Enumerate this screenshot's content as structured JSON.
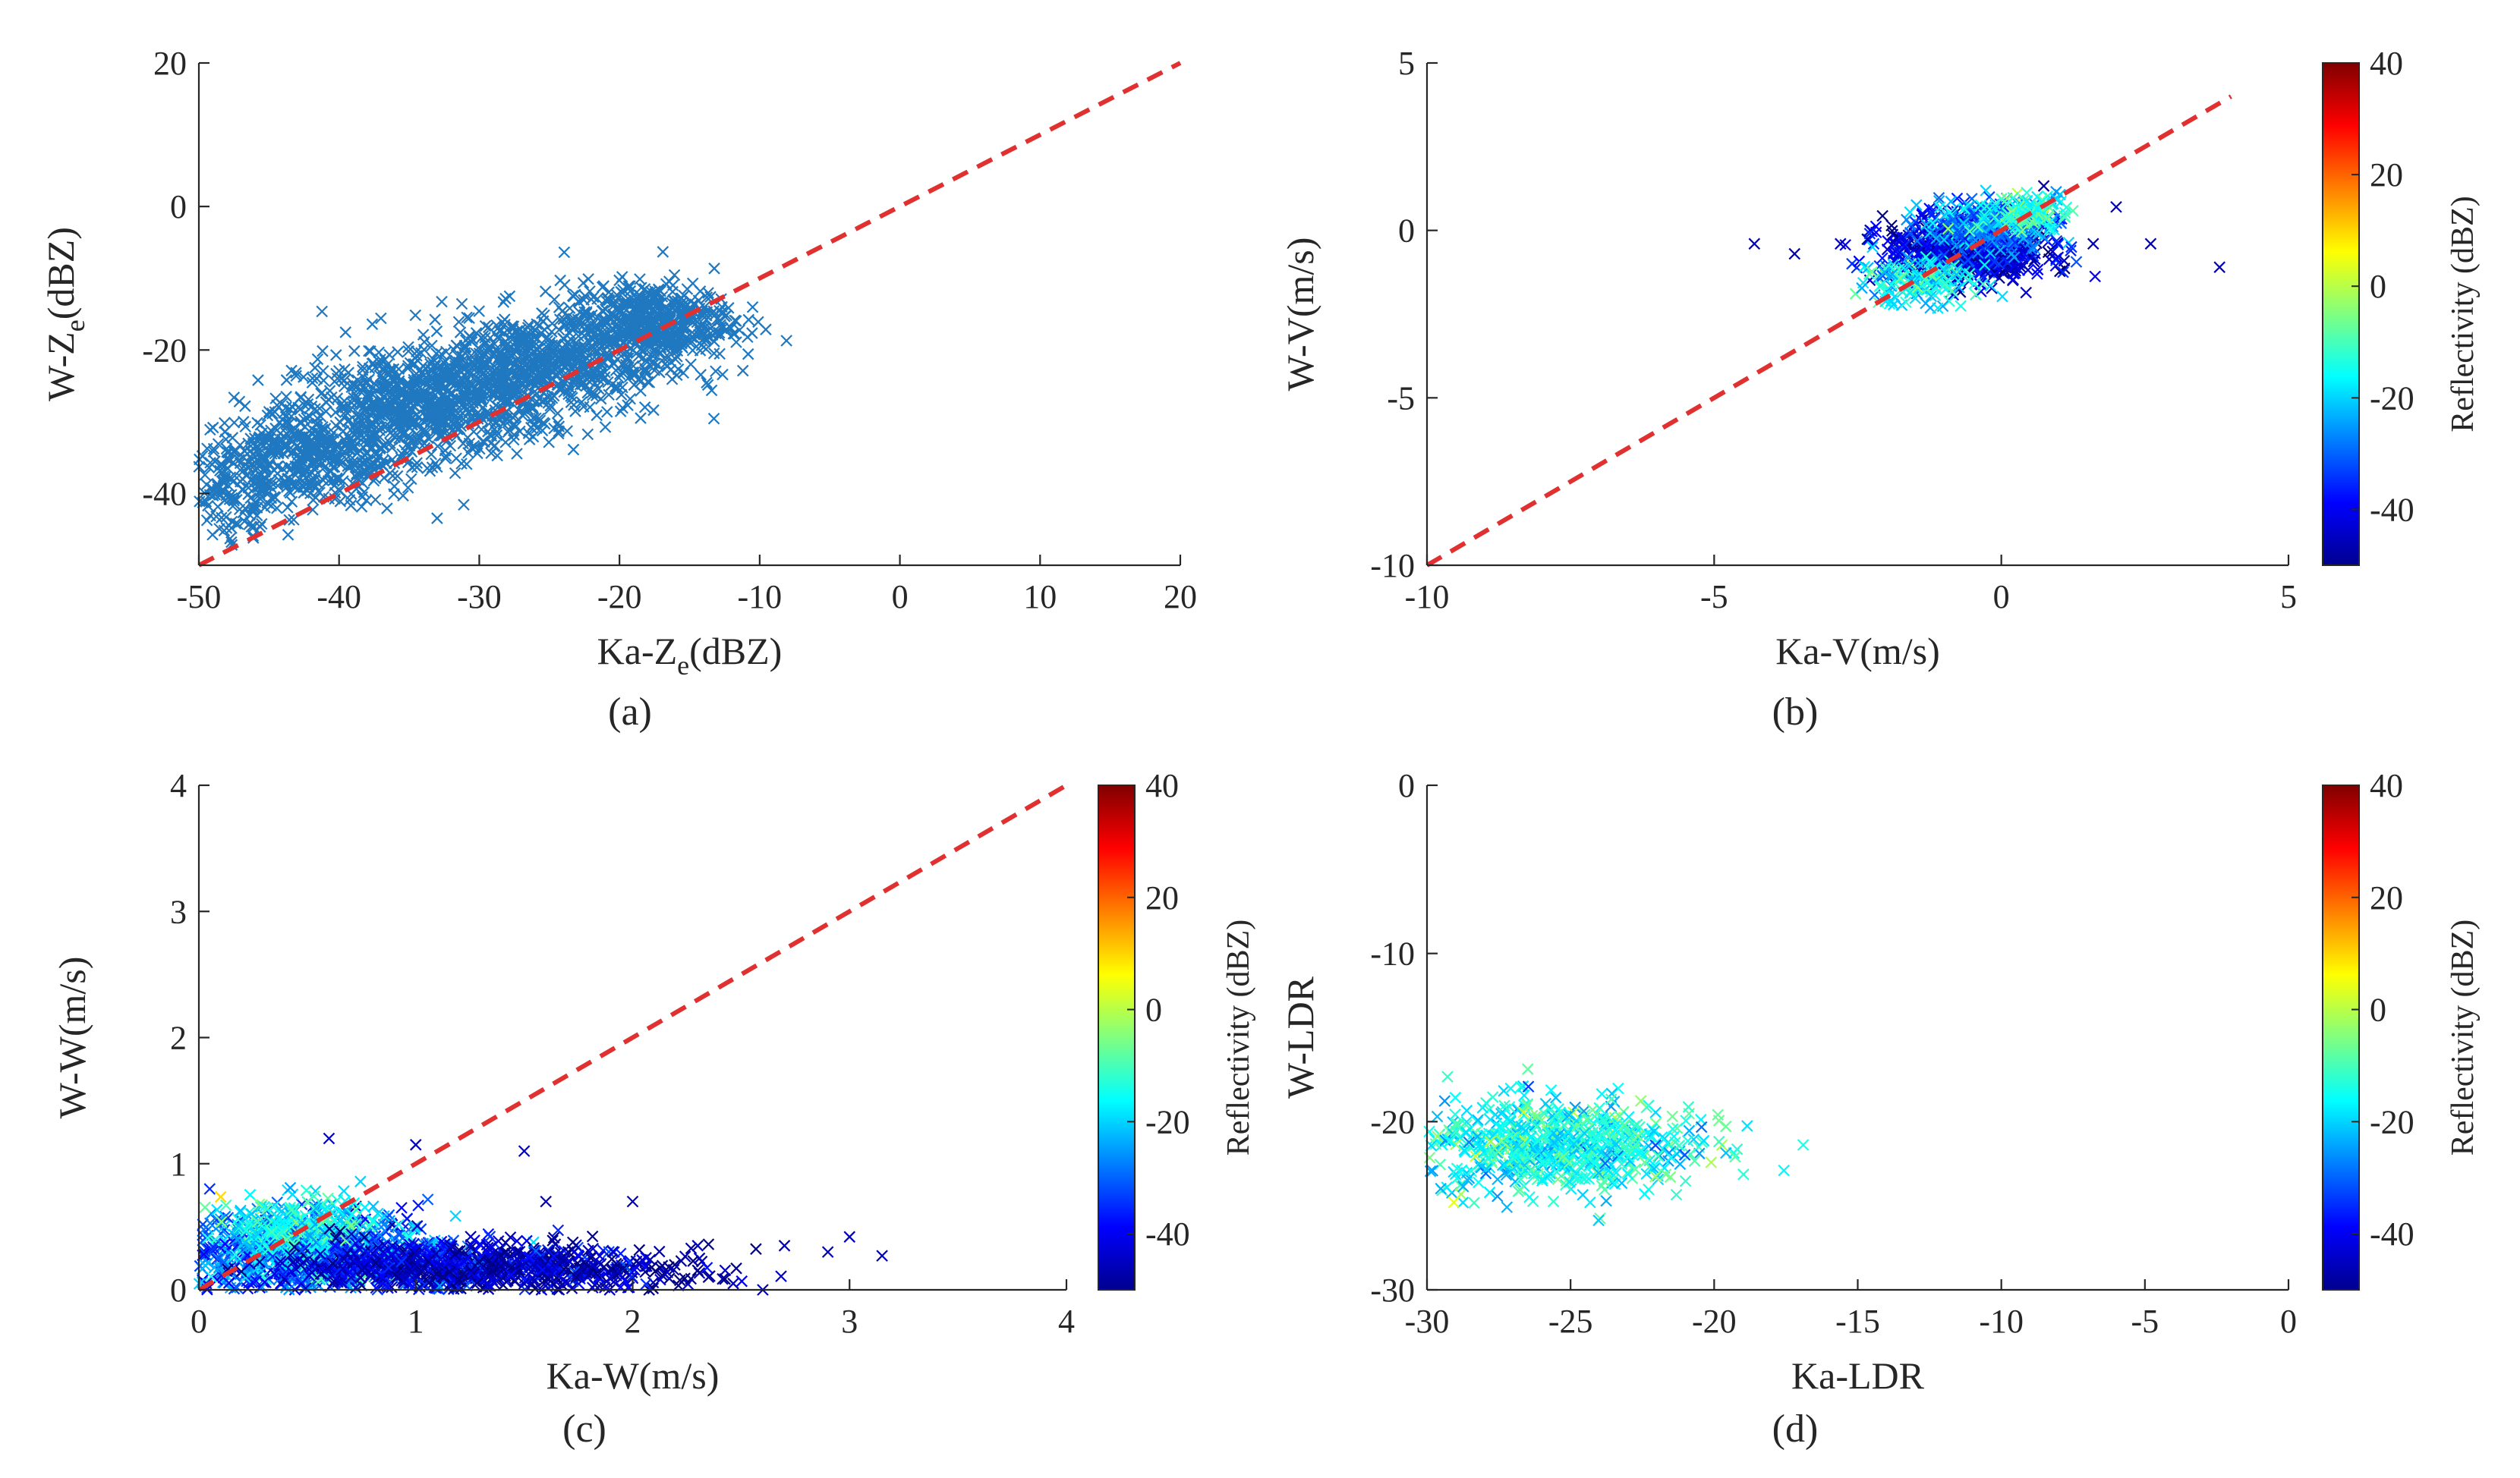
{
  "figure": {
    "panels": [
      {
        "id": "a",
        "caption": "(a)"
      },
      {
        "id": "b",
        "caption": "(b)"
      },
      {
        "id": "c",
        "caption": "(c)"
      },
      {
        "id": "d",
        "caption": "(d)"
      }
    ]
  },
  "colors": {
    "reference_line": "#e03030",
    "scatter_single": "#1f78c0",
    "axis": "#262626"
  },
  "chart_data": [
    {
      "panel": "a",
      "type": "scatter",
      "title": "",
      "xlabel": "Ka-Z",
      "xlabel_sub": "e",
      "xlabel_suffix": "(dBZ)",
      "ylabel": "W-Z",
      "ylabel_sub": "e",
      "ylabel_suffix": "(dBZ)",
      "xlim": [
        -50,
        20
      ],
      "ylim": [
        -50,
        20
      ],
      "xticks": [
        -50,
        -40,
        -30,
        -20,
        -10,
        0,
        10,
        20
      ],
      "yticks": [
        -40,
        -20,
        0,
        20
      ],
      "xtick_labels": [
        "-50",
        "-40",
        "-30",
        "-20",
        "-10",
        "0",
        "10",
        "20"
      ],
      "ytick_labels": [
        "-40",
        "-20",
        "0",
        "20"
      ],
      "reference_line": {
        "x": [
          -50,
          20
        ],
        "y": [
          -50,
          20
        ],
        "style": "dashed",
        "color": "#e03030"
      },
      "marker": "x",
      "color": "#1f78c0",
      "clusters": [
        {
          "cx": -42,
          "cy": -35,
          "sx": 4.0,
          "sy": 3.3,
          "n": 500
        },
        {
          "cx": -34,
          "cy": -28,
          "sx": 4.5,
          "sy": 3.5,
          "n": 700
        },
        {
          "cx": -26,
          "cy": -22,
          "sx": 4.5,
          "sy": 3.5,
          "n": 700
        },
        {
          "cx": -18,
          "cy": -16,
          "sx": 3.0,
          "sy": 2.7,
          "n": 500
        },
        {
          "cx": -47,
          "cy": -40,
          "sx": 2.0,
          "sy": 3.5,
          "n": 120
        }
      ]
    },
    {
      "panel": "b",
      "type": "scatter",
      "title": "",
      "xlabel": "Ka-V(m/s)",
      "ylabel": "W-V(m/s)",
      "xlim": [
        -10,
        5
      ],
      "ylim": [
        -10,
        5
      ],
      "xticks": [
        -10,
        -5,
        0,
        5
      ],
      "yticks": [
        -10,
        -5,
        0,
        5
      ],
      "xtick_labels": [
        "-10",
        "-5",
        "0",
        "5"
      ],
      "ytick_labels": [
        "-10",
        "-5",
        "0",
        "5"
      ],
      "reference_line": {
        "x": [
          -10,
          4
        ],
        "y": [
          -10,
          4
        ],
        "style": "dashed",
        "color": "#e03030"
      },
      "marker": "x",
      "color_by": "Reflectivity (dBZ)",
      "clusters": [
        {
          "cx": -0.6,
          "cy": -0.6,
          "sx": 0.7,
          "sy": 0.45,
          "n": 700,
          "z": -42
        },
        {
          "cx": -0.2,
          "cy": 0.2,
          "sx": 0.6,
          "sy": 0.4,
          "n": 250,
          "z": -28
        },
        {
          "cx": -1.5,
          "cy": -1.5,
          "sx": 0.5,
          "sy": 0.35,
          "n": 150,
          "z": -18
        },
        {
          "cx": 0.4,
          "cy": 0.5,
          "sx": 0.4,
          "sy": 0.3,
          "n": 120,
          "z": -12
        }
      ],
      "outliers": [
        {
          "x": -4.3,
          "y": -0.4,
          "z": -45
        },
        {
          "x": -3.6,
          "y": -0.7,
          "z": -45
        },
        {
          "x": -2.8,
          "y": -0.4,
          "z": -45
        },
        {
          "x": 1.6,
          "y": -0.4,
          "z": -45
        },
        {
          "x": 2.0,
          "y": 0.7,
          "z": -45
        },
        {
          "x": 2.6,
          "y": -0.4,
          "z": -45
        },
        {
          "x": 3.8,
          "y": -1.1,
          "z": -45
        }
      ],
      "colorbar": {
        "label": "Reflectivity (dBZ)",
        "range": [
          -50,
          40
        ],
        "ticks": [
          -40,
          -20,
          0,
          20,
          40
        ],
        "tick_labels": [
          "-40",
          "-20",
          "0",
          "20",
          "40"
        ]
      }
    },
    {
      "panel": "c",
      "type": "scatter",
      "title": "",
      "xlabel": "Ka-W(m/s)",
      "ylabel": "W-W(m/s)",
      "xlim": [
        0,
        4
      ],
      "ylim": [
        0,
        4
      ],
      "xticks": [
        0,
        1,
        2,
        3,
        4
      ],
      "yticks": [
        0,
        1,
        2,
        3,
        4
      ],
      "xtick_labels": [
        "0",
        "1",
        "2",
        "3",
        "4"
      ],
      "ytick_labels": [
        "0",
        "1",
        "2",
        "3",
        "4"
      ],
      "reference_line": {
        "x": [
          0,
          4
        ],
        "y": [
          0,
          4
        ],
        "style": "dashed",
        "color": "#e03030"
      },
      "marker": "x",
      "color_by": "Reflectivity (dBZ)",
      "clusters": [
        {
          "cx": 0.5,
          "cy": 0.28,
          "sx": 0.35,
          "sy": 0.16,
          "n": 900,
          "z": -30
        },
        {
          "cx": 0.45,
          "cy": 0.45,
          "sx": 0.2,
          "sy": 0.15,
          "n": 300,
          "z": -16
        },
        {
          "cx": 1.1,
          "cy": 0.18,
          "sx": 0.4,
          "sy": 0.1,
          "n": 600,
          "z": -42
        },
        {
          "cx": 1.7,
          "cy": 0.15,
          "sx": 0.35,
          "sy": 0.1,
          "n": 250,
          "z": -46
        }
      ],
      "outliers": [
        {
          "x": 0.6,
          "y": 1.2,
          "z": -45
        },
        {
          "x": 1.0,
          "y": 1.15,
          "z": -45
        },
        {
          "x": 1.5,
          "y": 1.1,
          "z": -45
        },
        {
          "x": 1.6,
          "y": 0.7,
          "z": -45
        },
        {
          "x": 2.0,
          "y": 0.7,
          "z": -45
        },
        {
          "x": 2.3,
          "y": 0.35,
          "z": -45
        },
        {
          "x": 2.6,
          "y": 0.0,
          "z": -45
        },
        {
          "x": 2.7,
          "y": 0.35,
          "z": -45
        },
        {
          "x": 2.9,
          "y": 0.3,
          "z": -45
        },
        {
          "x": 3.0,
          "y": 0.42,
          "z": -45
        },
        {
          "x": 3.15,
          "y": 0.27,
          "z": -45
        },
        {
          "x": 0.05,
          "y": 0.8,
          "z": -35
        }
      ],
      "colorbar": {
        "label": "Reflectivity (dBZ)",
        "range": [
          -50,
          40
        ],
        "ticks": [
          -40,
          -20,
          0,
          20,
          40
        ],
        "tick_labels": [
          "-40",
          "-20",
          "0",
          "20",
          "40"
        ]
      }
    },
    {
      "panel": "d",
      "type": "scatter",
      "title": "",
      "xlabel": "Ka-LDR",
      "ylabel": "W-LDR",
      "xlim": [
        -30,
        0
      ],
      "ylim": [
        -30,
        0
      ],
      "xticks": [
        -30,
        -25,
        -20,
        -15,
        -10,
        -5,
        0
      ],
      "yticks": [
        -30,
        -20,
        -10,
        0
      ],
      "xtick_labels": [
        "-30",
        "-25",
        "-20",
        "-15",
        "-10",
        "-5",
        "0"
      ],
      "ytick_labels": [
        "-30",
        "-20",
        "-10",
        "0"
      ],
      "marker": "x",
      "color_by": "Reflectivity (dBZ)",
      "clusters": [
        {
          "cx": -25.5,
          "cy": -21.5,
          "sx": 2.4,
          "sy": 1.4,
          "n": 700,
          "z": -15
        }
      ],
      "colorbar": {
        "label": "Reflectivity (dBZ)",
        "range": [
          -50,
          40
        ],
        "ticks": [
          -40,
          -20,
          0,
          20,
          40
        ],
        "tick_labels": [
          "-40",
          "-20",
          "0",
          "20",
          "40"
        ]
      }
    }
  ]
}
